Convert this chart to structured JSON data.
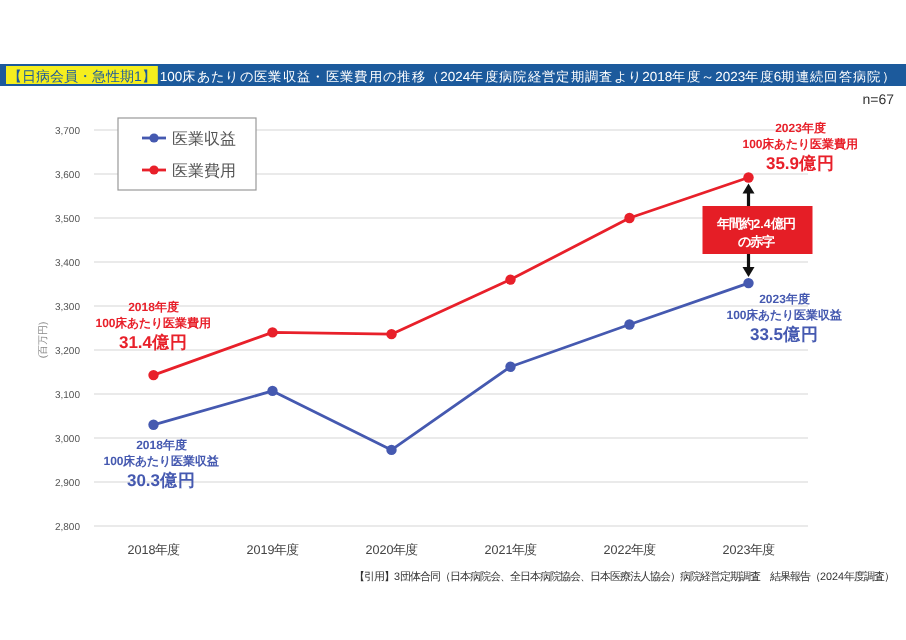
{
  "chart_data": {
    "type": "line",
    "title": "【日病会員・急性期1】",
    "subtitle": "100床あたりの医業収益・医業費用の推移（2024年度病院経営定期調査より2018年度～2023年度6期連続回答病院）",
    "ylabel": "(百万円)",
    "categories": [
      "2018年度",
      "2019年度",
      "2020年度",
      "2021年度",
      "2022年度",
      "2023年度"
    ],
    "series": [
      {
        "name": "医業収益",
        "color": "#4559b0",
        "values": [
          3030,
          3107,
          2973,
          3162,
          3258,
          3352
        ]
      },
      {
        "name": "医業費用",
        "color": "#e8202a",
        "values": [
          3143,
          3240,
          3236,
          3360,
          3500,
          3592
        ]
      }
    ],
    "ylim": [
      2800,
      3700
    ],
    "yticks": [
      {
        "value": 2800,
        "label": "2,800"
      },
      {
        "value": 2900,
        "label": "2,900"
      },
      {
        "value": 3000,
        "label": "3,000"
      },
      {
        "value": 3100,
        "label": "3,100"
      },
      {
        "value": 3200,
        "label": "3,200"
      },
      {
        "value": 3300,
        "label": "3,300"
      },
      {
        "value": 3400,
        "label": "3,400"
      },
      {
        "value": 3500,
        "label": "3,500"
      },
      {
        "value": 3600,
        "label": "3,600"
      },
      {
        "value": 3700,
        "label": "3,700"
      }
    ],
    "grid": "y",
    "legend": "top left",
    "marker": "circle",
    "annotations": [
      "n=67",
      {
        "text": "2018年度\n100床あたり医業費用\n31.4億円",
        "x": "2018年度",
        "y": 3143
      },
      {
        "text": "2018年度\n100床あたり医業収益\n30.3億円",
        "x": "2018年度",
        "y": 3030
      },
      {
        "text": "2023年度\n100床あたり医業費用\n35.9億円",
        "x": "2023年度",
        "y": 3592
      },
      {
        "text": "2023年度\n100床あたり医業収益\n33.5億円",
        "x": "2023年度",
        "y": 3352
      },
      "年間約2.4億円",
      "の赤字",
      "【引用】3団体合同（日本病院会、全日本病院協会、日本医療法人協会）病院経営定期調査　結果報告（2024年度調査）"
    ]
  }
}
